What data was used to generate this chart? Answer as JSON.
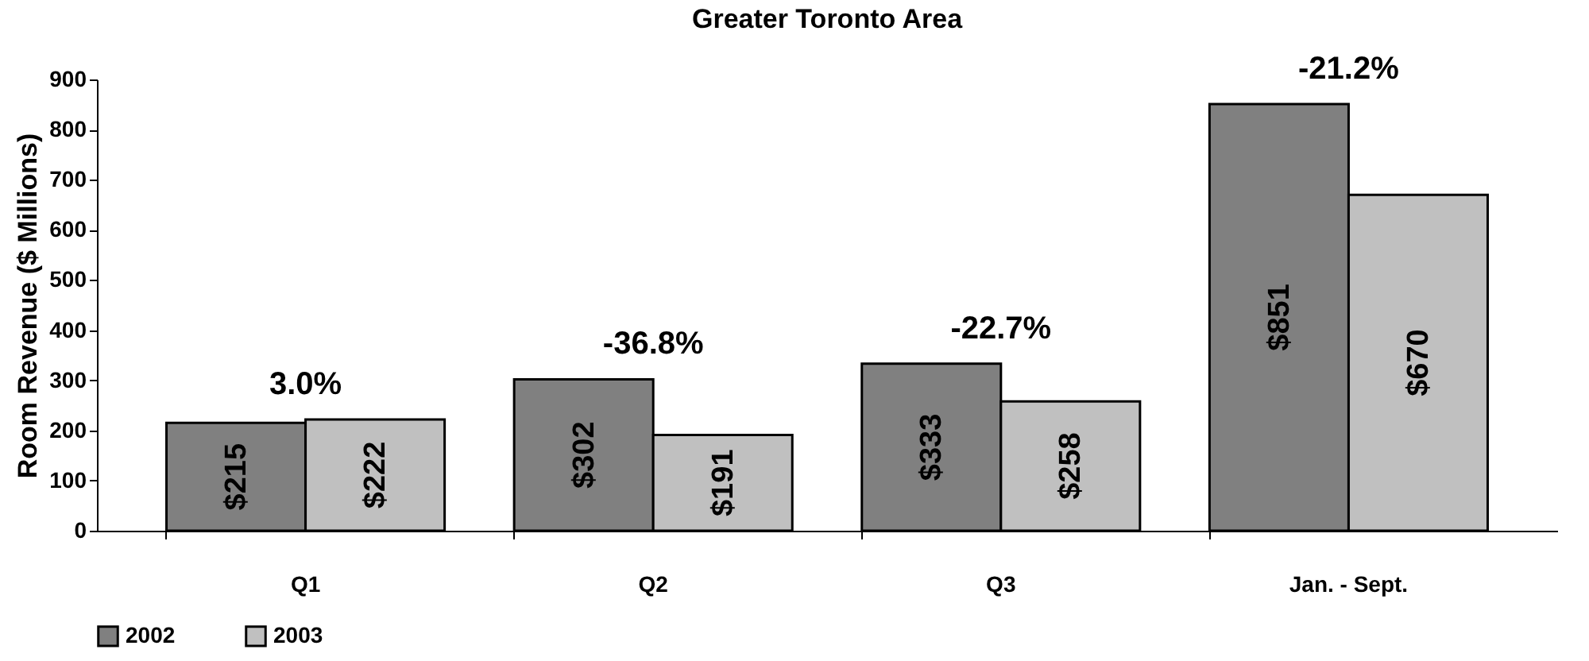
{
  "chart_data": {
    "type": "bar",
    "title": "Greater Toronto Area",
    "ylabel": "Room Revenue ($ Millions)",
    "categories": [
      "Q1",
      "Q2",
      "Q3",
      "Jan. - Sept."
    ],
    "series": [
      {
        "name": "2002",
        "color": "#808080",
        "values": [
          215,
          302,
          333,
          851
        ],
        "value_labels": [
          "$215",
          "$302",
          "$333",
          "$851"
        ]
      },
      {
        "name": "2003",
        "color": "#c0c0c0",
        "values": [
          222,
          191,
          258,
          670
        ],
        "value_labels": [
          "$222",
          "$191",
          "$258",
          "$670"
        ]
      }
    ],
    "annotations": [
      "3.0%",
      "-36.8%",
      "-22.7%",
      "-21.2%"
    ],
    "ylim": [
      0,
      900
    ],
    "yticks": [
      0,
      100,
      200,
      300,
      400,
      500,
      600,
      700,
      800,
      900
    ],
    "grid": false,
    "legend": "bottom"
  }
}
